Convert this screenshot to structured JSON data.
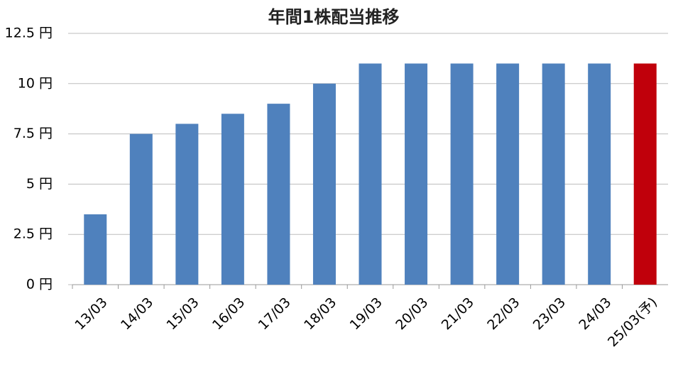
{
  "chart_data": {
    "type": "bar",
    "title": "年間1株配当推移",
    "categories": [
      "13/03",
      "14/03",
      "15/03",
      "16/03",
      "17/03",
      "18/03",
      "19/03",
      "20/03",
      "21/03",
      "22/03",
      "23/03",
      "24/03",
      "25/03(予)"
    ],
    "values": [
      3.5,
      7.5,
      8,
      8.5,
      9,
      10,
      11,
      11,
      11,
      11,
      11,
      11,
      11
    ],
    "colors": [
      "#4f81bd",
      "#4f81bd",
      "#4f81bd",
      "#4f81bd",
      "#4f81bd",
      "#4f81bd",
      "#4f81bd",
      "#4f81bd",
      "#4f81bd",
      "#4f81bd",
      "#4f81bd",
      "#4f81bd",
      "#c0000b"
    ],
    "ylim": [
      0,
      12.5
    ],
    "yticks": [
      {
        "value": 0,
        "label": "0 円"
      },
      {
        "value": 2.5,
        "label": "2.5 円"
      },
      {
        "value": 5,
        "label": "5 円"
      },
      {
        "value": 7.5,
        "label": "7.5 円"
      },
      {
        "value": 10,
        "label": "10 円"
      },
      {
        "value": 12.5,
        "label": "12.5 円"
      }
    ],
    "grid": true
  }
}
